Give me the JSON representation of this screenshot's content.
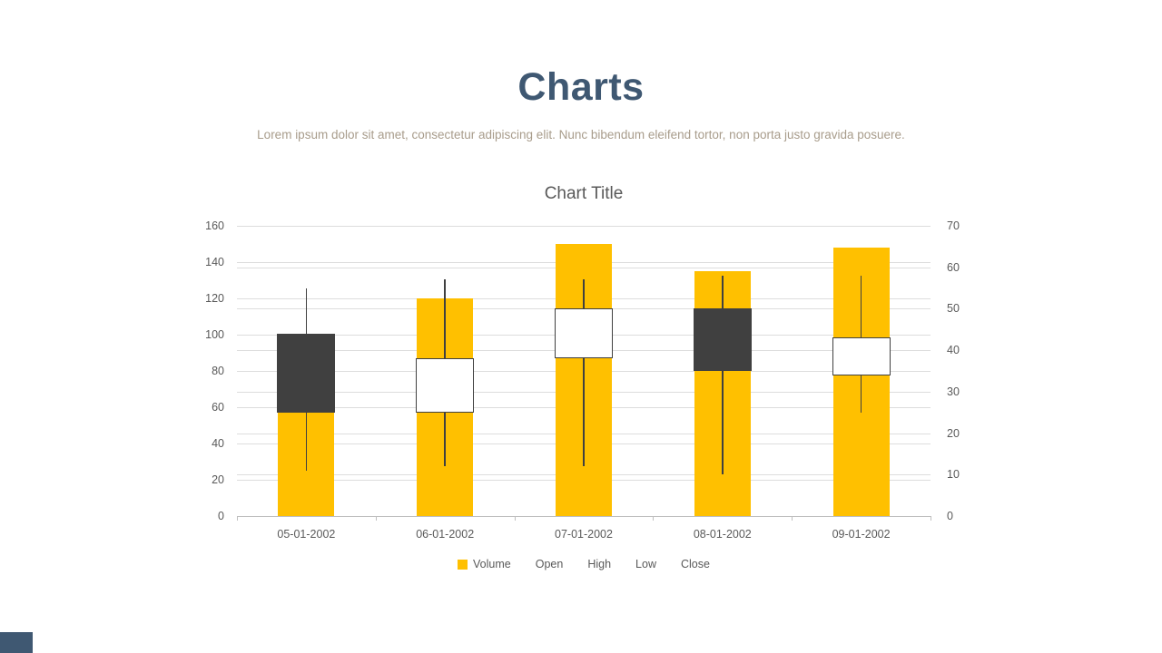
{
  "slide": {
    "title": "Charts",
    "subtitle": "Lorem ipsum dolor sit amet, consectetur adipiscing elit. Nunc bibendum eleifend tortor, non porta justo gravida posuere.",
    "colors": {
      "title": "#3F5872",
      "subtitle": "#A89C8B",
      "accent_bar": "#3F5872"
    }
  },
  "chart_data": {
    "type": "bar",
    "subtype": "volume-open-high-low-close stock chart",
    "title": "Chart Title",
    "categories": [
      "05-01-2002",
      "06-01-2002",
      "07-01-2002",
      "08-01-2002",
      "09-01-2002"
    ],
    "series": [
      {
        "name": "Volume",
        "type": "column",
        "axis": "left",
        "values": [
          57,
          120,
          150,
          135,
          148
        ]
      },
      {
        "name": "Open",
        "type": "stock",
        "axis": "right",
        "values": [
          44,
          25,
          38,
          50,
          34
        ]
      },
      {
        "name": "High",
        "type": "stock",
        "axis": "right",
        "values": [
          55,
          57,
          57,
          58,
          58
        ]
      },
      {
        "name": "Low",
        "type": "stock",
        "axis": "right",
        "values": [
          11,
          12,
          12,
          10,
          25
        ]
      },
      {
        "name": "Close",
        "type": "stock",
        "axis": "right",
        "values": [
          25,
          38,
          50,
          35,
          43
        ]
      }
    ],
    "left_axis": {
      "min": 0,
      "max": 160,
      "step": 20
    },
    "right_axis": {
      "min": 0,
      "max": 70,
      "step": 10
    },
    "legend": [
      "Volume",
      "Open",
      "High",
      "Low",
      "Close"
    ],
    "legend_position": "bottom",
    "grid": true,
    "colors": {
      "volume": "#FFC000",
      "up_fill": "#FFFFFF",
      "down_fill": "#404040",
      "outline": "#404040",
      "wick": "#404040",
      "gridline": "#DDDDDD",
      "axis_line": "#BFBFBF",
      "text": "#595959"
    }
  }
}
